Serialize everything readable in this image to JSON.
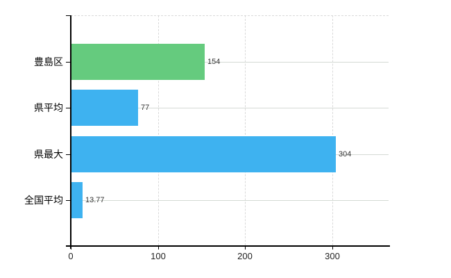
{
  "chart_data": {
    "type": "bar",
    "orientation": "horizontal",
    "title": "",
    "xlabel": "",
    "ylabel": "",
    "categories": [
      "豊島区",
      "県平均",
      "県最大",
      "全国平均"
    ],
    "values": [
      154,
      77,
      304,
      13.77
    ],
    "value_labels": [
      "154",
      "77",
      "304",
      "13.77"
    ],
    "bar_colors": [
      "#65cb7e",
      "#3eb2f0",
      "#3eb2f0",
      "#3eb2f0"
    ],
    "x_tick_values": [
      0,
      100,
      200,
      300
    ],
    "x_tick_labels": [
      "0",
      "100",
      "200",
      "300"
    ],
    "xlim": [
      0,
      365
    ],
    "grid": true,
    "legend": false,
    "colors": {
      "bar_highlight": "#65cb7e",
      "bar_default": "#3eb2f0",
      "axis": "#000000",
      "gridline_solid": "#d4dad4",
      "gridline_dashed": "#d9d9d9",
      "value_text": "#333333",
      "tick_text": "#222222",
      "background": "#ffffff"
    }
  }
}
